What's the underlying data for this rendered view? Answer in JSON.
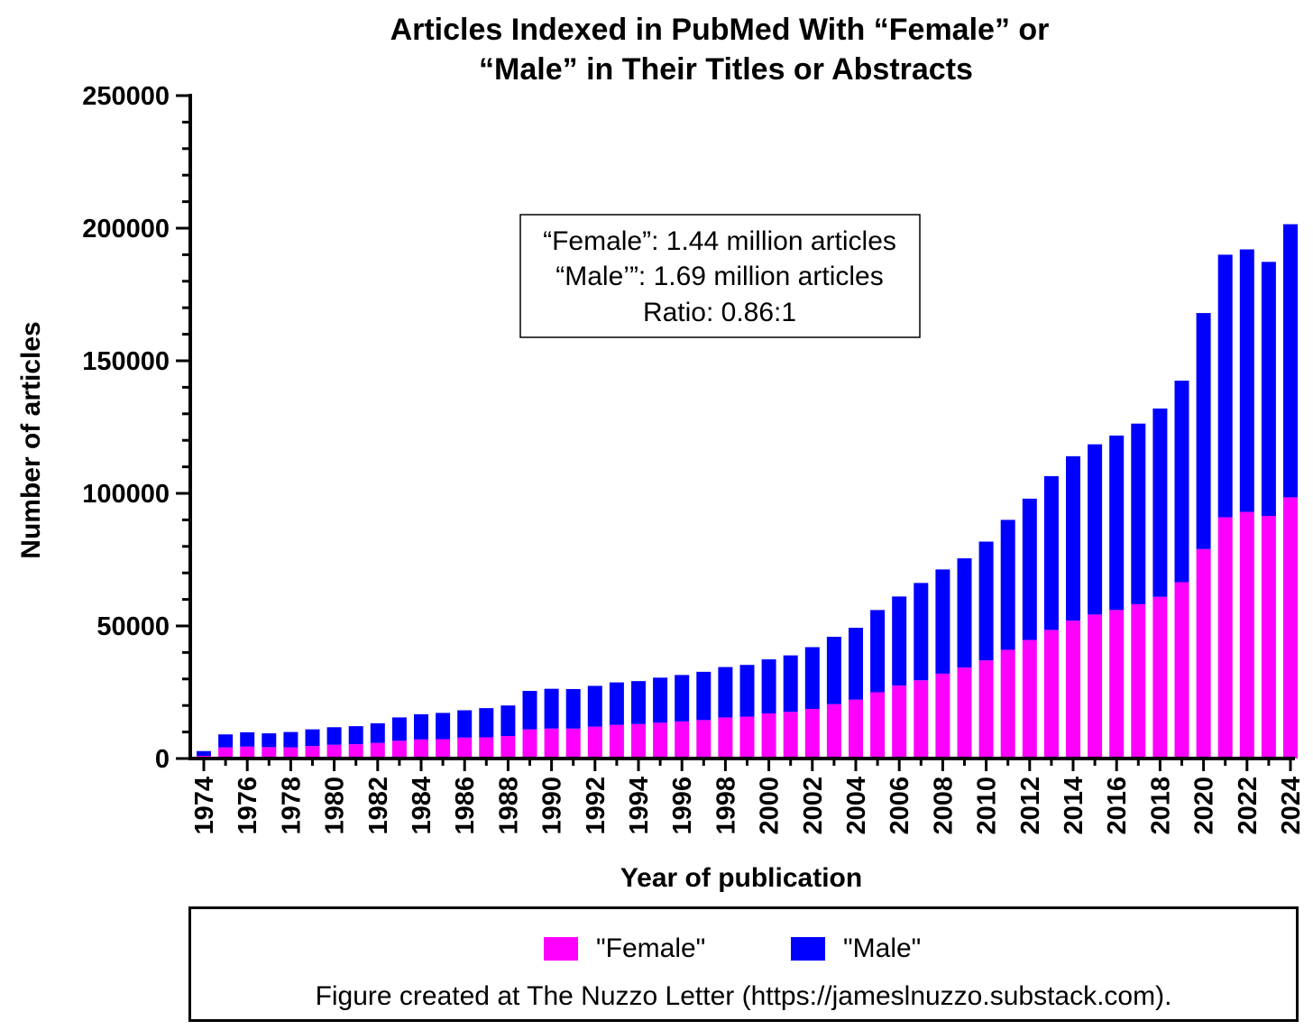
{
  "chart_data": {
    "type": "bar",
    "stacked": true,
    "title_line1": "Articles Indexed in PubMed With “Female” or",
    "title_line2": "“Male” in Their Titles or Abstracts",
    "xlabel": "Year of publication",
    "ylabel": "Number of articles",
    "ylim": [
      0,
      250000
    ],
    "yticks": [
      "0",
      "50000",
      "100000",
      "150000",
      "200000",
      "250000"
    ],
    "categories": [
      1974,
      1975,
      1976,
      1977,
      1978,
      1979,
      1980,
      1981,
      1982,
      1983,
      1984,
      1985,
      1986,
      1987,
      1988,
      1989,
      1990,
      1991,
      1992,
      1993,
      1994,
      1995,
      1996,
      1997,
      1998,
      1999,
      2000,
      2001,
      2002,
      2003,
      2004,
      2005,
      2006,
      2007,
      2008,
      2009,
      2010,
      2011,
      2012,
      2013,
      2014,
      2015,
      2016,
      2017,
      2018,
      2019,
      2020,
      2021,
      2022,
      2023,
      2024
    ],
    "xtick_labels": [
      "1974",
      "1976",
      "1978",
      "1980",
      "1982",
      "1984",
      "1986",
      "1988",
      "1990",
      "1992",
      "1994",
      "1996",
      "1998",
      "2000",
      "2002",
      "2004",
      "2006",
      "2008",
      "2010",
      "2012",
      "2014",
      "2016",
      "2018",
      "2020",
      "2022",
      "2024"
    ],
    "series": [
      {
        "name": "\"Female\"",
        "color": "#ff00ff",
        "values": [
          1000,
          4200,
          4500,
          4300,
          4200,
          4700,
          5200,
          5400,
          5900,
          6700,
          7200,
          7300,
          7900,
          8000,
          8500,
          11000,
          11300,
          11300,
          12000,
          12700,
          13000,
          13500,
          14000,
          14500,
          15500,
          15800,
          17000,
          17600,
          18700,
          20500,
          22200,
          25000,
          27500,
          29500,
          32000,
          34300,
          37000,
          41000,
          44700,
          48500,
          52000,
          54300,
          56000,
          58200,
          61000,
          66500,
          79000,
          91000,
          93000,
          91500,
          98500
        ]
      },
      {
        "name": "\"Male\"",
        "color": "#0000ff",
        "values": [
          1800,
          4900,
          5400,
          5200,
          5800,
          6300,
          6600,
          6800,
          7400,
          8800,
          9500,
          9900,
          10300,
          11000,
          11500,
          14500,
          15000,
          14900,
          15400,
          16000,
          16200,
          17000,
          17500,
          18200,
          19000,
          19500,
          20400,
          21300,
          23300,
          25400,
          27100,
          31000,
          33600,
          36700,
          39300,
          41200,
          44800,
          49000,
          53300,
          58000,
          62000,
          64200,
          65800,
          68100,
          71000,
          76000,
          89000,
          99000,
          99000,
          95800,
          103000
        ]
      }
    ],
    "annotation": [
      "“Female”: 1.44 million articles",
      "“Male’”: 1.69 million articles",
      "Ratio: 0.86:1"
    ]
  },
  "legend": {
    "female_label": "\"Female\"",
    "male_label": "\"Male\"",
    "credit": "Figure created at The Nuzzo Letter (https://jameslnuzzo.substack.com)."
  }
}
